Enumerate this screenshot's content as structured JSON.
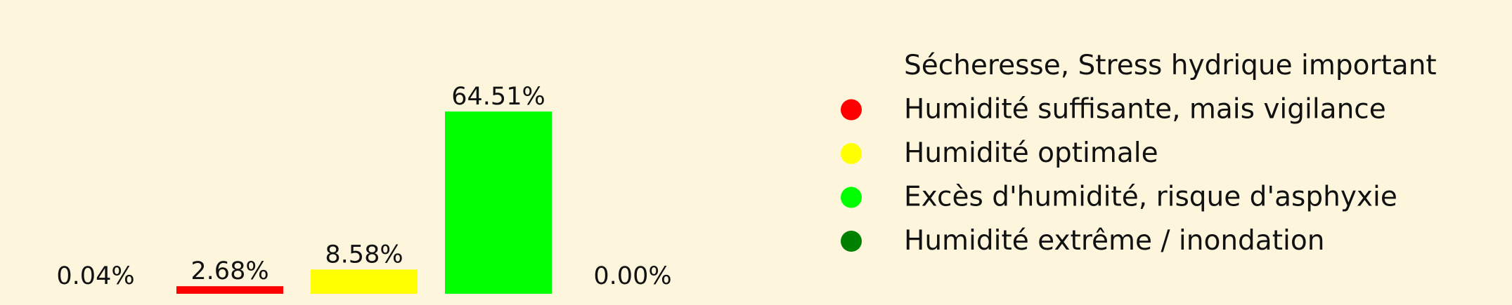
{
  "chart_data": {
    "type": "bar",
    "categories": [
      "Sécheresse, Stress hydrique important",
      "Humidité suffisante, mais vigilance",
      "Humidité optimale",
      "Excès d'humidité, risque d'asphyxie",
      "Humidité extrême / inondation"
    ],
    "values": [
      0.04,
      2.68,
      8.58,
      64.51,
      0.0
    ],
    "data_labels": [
      "0.04%",
      "2.68%",
      "8.58%",
      "64.51%",
      "0.00%"
    ],
    "colors": [
      "#fdf6dc",
      "#ff0000",
      "#ffff00",
      "#00ff00",
      "#008000"
    ],
    "title": "",
    "xlabel": "",
    "ylabel": "",
    "ylim": [
      0,
      64.51
    ],
    "unit": "%",
    "grid": false,
    "legend_position": "right",
    "legend": [
      {
        "label": "Sécheresse, Stress hydrique important",
        "color": "#fdf6dc"
      },
      {
        "label": "Humidité suffisante, mais vigilance",
        "color": "#ff0000"
      },
      {
        "label": "Humidité optimale",
        "color": "#ffff00"
      },
      {
        "label": "Excès d'humidité, risque d'asphyxie",
        "color": "#00ff00"
      },
      {
        "label": "Humidité extrême / inondation",
        "color": "#008000"
      }
    ]
  }
}
